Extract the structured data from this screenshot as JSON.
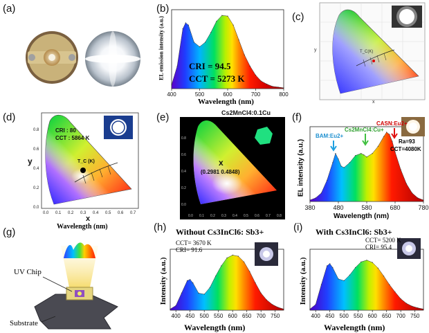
{
  "figure": {
    "panels": [
      {
        "id": "a",
        "label": "(a)"
      },
      {
        "id": "b",
        "label": "(b)"
      },
      {
        "id": "c",
        "label": "(c)"
      },
      {
        "id": "d",
        "label": "(d)"
      },
      {
        "id": "e",
        "label": "(e)"
      },
      {
        "id": "f",
        "label": "(f)"
      },
      {
        "id": "g",
        "label": "(g)"
      },
      {
        "id": "h",
        "label": "(h)"
      },
      {
        "id": "i",
        "label": "(i)"
      }
    ]
  },
  "panel_c": {
    "cie_x": "x",
    "cie_y": "y",
    "tc_label": "T_C(K)"
  },
  "panel_d": {
    "cri": "CRI : 80",
    "cct": "CCT : 5864 K",
    "tc_label": "T_C (K)",
    "y_axis": "y",
    "x_axis": "x",
    "bottom_label": "Wavelength (nm)"
  },
  "panel_e": {
    "title": "Cs2MnCl4:0.1Cu",
    "point_marker": "x",
    "coordinates": "(0.2981 0.4848)"
  },
  "panel_g": {
    "uv_chip": "UV Chip",
    "substrate": "Substrate"
  },
  "chart_data": [
    {
      "panel": "b",
      "type": "line",
      "title": "",
      "xlabel": "Wavelength (nm)",
      "ylabel": "EL emission intensity (a.u.)",
      "xlim": [
        400,
        800
      ],
      "xticks": [
        400,
        500,
        600,
        700,
        800
      ],
      "x": [
        400,
        420,
        440,
        450,
        460,
        480,
        500,
        520,
        540,
        560,
        580,
        600,
        620,
        640,
        660,
        680,
        700,
        720,
        740,
        760,
        780,
        800
      ],
      "y": [
        0.05,
        0.3,
        0.8,
        0.88,
        0.85,
        0.62,
        0.56,
        0.62,
        0.75,
        0.9,
        0.98,
        0.97,
        0.85,
        0.65,
        0.45,
        0.3,
        0.18,
        0.1,
        0.06,
        0.03,
        0.02,
        0.01
      ],
      "annotations": [
        "CRI = 94.5",
        "CCT = 5273 K"
      ]
    },
    {
      "panel": "f",
      "type": "line",
      "title": "",
      "xlabel": "Wavelength (nm)",
      "ylabel": "EL intensity (a.u.)",
      "xlim": [
        380,
        780
      ],
      "xticks": [
        380,
        480,
        580,
        680,
        780
      ],
      "x": [
        380,
        400,
        420,
        440,
        460,
        470,
        480,
        490,
        500,
        520,
        540,
        560,
        570,
        580,
        600,
        620,
        640,
        650,
        660,
        670,
        680,
        700,
        720,
        740,
        760,
        780
      ],
      "y": [
        0.02,
        0.05,
        0.12,
        0.3,
        0.55,
        0.68,
        0.6,
        0.5,
        0.48,
        0.55,
        0.65,
        0.68,
        0.66,
        0.63,
        0.68,
        0.78,
        0.92,
        0.98,
        0.95,
        0.85,
        0.7,
        0.45,
        0.25,
        0.12,
        0.05,
        0.02
      ],
      "annotations": [
        "BAM:Eu2+",
        "Cs2MnCl4:Cu+",
        "CASN:Eu2+",
        "Ra=93",
        "CCT=4080K"
      ]
    },
    {
      "panel": "h",
      "type": "line",
      "title": "Without Cs3InCl6: Sb3+",
      "xlabel": "Wavelength (nm)",
      "ylabel": "Intensity (a.u.)",
      "xlim": [
        380,
        780
      ],
      "xticks": [
        400,
        450,
        500,
        550,
        600,
        650,
        700,
        750
      ],
      "x": [
        380,
        400,
        420,
        440,
        450,
        460,
        480,
        500,
        520,
        540,
        560,
        580,
        600,
        620,
        640,
        660,
        680,
        700,
        720,
        740,
        760,
        780
      ],
      "y": [
        0.02,
        0.08,
        0.3,
        0.52,
        0.54,
        0.48,
        0.3,
        0.28,
        0.4,
        0.6,
        0.78,
        0.92,
        0.97,
        0.95,
        0.85,
        0.68,
        0.48,
        0.3,
        0.18,
        0.1,
        0.05,
        0.02
      ],
      "annotations": [
        "CCT= 3670 K",
        "CRI= 91.6"
      ]
    },
    {
      "panel": "i",
      "type": "line",
      "title": "With Cs3InCl6: Sb3+",
      "xlabel": "Wavelength (nm)",
      "ylabel": "Intensity (a.u.)",
      "xlim": [
        380,
        780
      ],
      "xticks": [
        400,
        450,
        500,
        550,
        600,
        650,
        700,
        750
      ],
      "x": [
        380,
        400,
        420,
        440,
        450,
        460,
        480,
        500,
        520,
        540,
        560,
        580,
        600,
        620,
        640,
        660,
        680,
        700,
        720,
        740,
        760,
        780
      ],
      "y": [
        0.02,
        0.1,
        0.45,
        0.78,
        0.82,
        0.75,
        0.55,
        0.52,
        0.62,
        0.75,
        0.85,
        0.88,
        0.84,
        0.74,
        0.6,
        0.45,
        0.32,
        0.2,
        0.12,
        0.07,
        0.04,
        0.02
      ],
      "annotations": [
        "CCT= 5200 K",
        "CRI= 95.4"
      ]
    }
  ]
}
